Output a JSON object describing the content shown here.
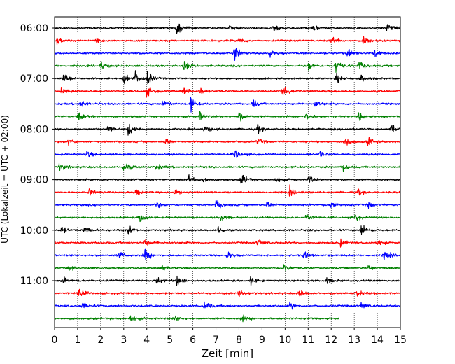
{
  "chart_data": {
    "type": "line",
    "subtype": "helicorder",
    "xlabel": "Zeit  [min]",
    "ylabel": "UTC (Lokalzeit = UTC + 02:00)",
    "xlim": [
      0,
      15
    ],
    "x_ticks": [
      0,
      1,
      2,
      3,
      4,
      5,
      6,
      7,
      8,
      9,
      10,
      11,
      12,
      13,
      14,
      15
    ],
    "x_tick_labels": [
      "0",
      "1",
      "2",
      "3",
      "4",
      "5",
      "6",
      "7",
      "8",
      "9",
      "10",
      "11",
      "12",
      "13",
      "14",
      "15"
    ],
    "grid": "vertical-dotted",
    "minutes_per_line": 15,
    "start_time": "06:00",
    "y_tick_labels": [
      "06:00",
      "07:00",
      "08:00",
      "09:00",
      "10:00",
      "11:00"
    ],
    "line_colors": [
      "#000000",
      "#ff0000",
      "#0000ff",
      "#008000"
    ],
    "series": [
      {
        "start": "06:00",
        "color": "#000000",
        "end_min": 15,
        "events": [
          [
            5.3,
            2.4
          ],
          [
            7.6,
            1.0
          ],
          [
            9.5,
            1.3
          ],
          [
            11.2,
            1.1
          ],
          [
            14.4,
            1.3
          ]
        ]
      },
      {
        "start": "06:15",
        "color": "#ff0000",
        "end_min": 15,
        "events": [
          [
            0.1,
            1.1
          ],
          [
            1.8,
            1.0
          ],
          [
            8.0,
            1.0
          ],
          [
            12.0,
            1.1
          ],
          [
            13.4,
            1.6
          ]
        ]
      },
      {
        "start": "06:30",
        "color": "#0000ff",
        "end_min": 15,
        "events": [
          [
            7.8,
            2.6
          ],
          [
            9.3,
            1.3
          ],
          [
            12.7,
            1.5
          ],
          [
            13.9,
            1.4
          ]
        ]
      },
      {
        "start": "06:45",
        "color": "#008000",
        "end_min": 15,
        "events": [
          [
            2.0,
            1.3
          ],
          [
            5.6,
            1.8
          ],
          [
            11.0,
            1.4
          ],
          [
            12.2,
            2.4
          ],
          [
            13.2,
            1.6
          ]
        ]
      },
      {
        "start": "07:00",
        "color": "#000000",
        "end_min": 15,
        "events": [
          [
            0.4,
            2.5
          ],
          [
            3.0,
            2.2
          ],
          [
            3.5,
            1.9
          ],
          [
            4.0,
            2.2
          ],
          [
            12.2,
            1.5
          ],
          [
            13.3,
            1.2
          ]
        ]
      },
      {
        "start": "07:15",
        "color": "#ff0000",
        "end_min": 15,
        "events": [
          [
            0.3,
            1.0
          ],
          [
            4.0,
            1.5
          ],
          [
            5.6,
            1.4
          ],
          [
            6.3,
            1.3
          ],
          [
            9.9,
            2.6
          ]
        ]
      },
      {
        "start": "07:30",
        "color": "#0000ff",
        "end_min": 15,
        "events": [
          [
            1.1,
            1.3
          ],
          [
            4.7,
            1.4
          ],
          [
            5.9,
            2.3
          ],
          [
            8.6,
            1.3
          ],
          [
            11.3,
            1.2
          ]
        ]
      },
      {
        "start": "07:45",
        "color": "#008000",
        "end_min": 15,
        "events": [
          [
            1.0,
            1.4
          ],
          [
            6.3,
            1.4
          ],
          [
            8.0,
            1.7
          ],
          [
            10.9,
            1.2
          ],
          [
            13.2,
            1.4
          ]
        ]
      },
      {
        "start": "08:00",
        "color": "#000000",
        "end_min": 15,
        "events": [
          [
            2.3,
            1.1
          ],
          [
            3.2,
            2.3
          ],
          [
            6.5,
            1.3
          ],
          [
            8.8,
            1.3
          ],
          [
            14.6,
            2.4
          ]
        ]
      },
      {
        "start": "08:15",
        "color": "#ff0000",
        "end_min": 15,
        "events": [
          [
            0.6,
            1.1
          ],
          [
            4.8,
            1.5
          ],
          [
            8.8,
            1.1
          ],
          [
            12.6,
            1.9
          ],
          [
            13.6,
            1.5
          ]
        ]
      },
      {
        "start": "08:30",
        "color": "#0000ff",
        "end_min": 15,
        "events": [
          [
            1.4,
            1.1
          ],
          [
            7.8,
            1.6
          ],
          [
            11.5,
            1.1
          ]
        ]
      },
      {
        "start": "08:45",
        "color": "#008000",
        "end_min": 15,
        "events": [
          [
            0.2,
            1.3
          ],
          [
            3.0,
            2.0
          ],
          [
            4.4,
            1.2
          ],
          [
            12.5,
            1.4
          ]
        ]
      },
      {
        "start": "09:00",
        "color": "#000000",
        "end_min": 15,
        "events": [
          [
            5.8,
            1.2
          ],
          [
            6.4,
            1.4
          ],
          [
            8.1,
            2.2
          ],
          [
            9.6,
            1.3
          ],
          [
            11.0,
            1.2
          ]
        ]
      },
      {
        "start": "09:15",
        "color": "#ff0000",
        "end_min": 15,
        "events": [
          [
            1.5,
            1.1
          ],
          [
            3.5,
            1.1
          ],
          [
            5.2,
            1.1
          ],
          [
            10.2,
            1.3
          ],
          [
            13.1,
            1.1
          ]
        ]
      },
      {
        "start": "09:30",
        "color": "#0000ff",
        "end_min": 15,
        "events": [
          [
            4.4,
            1.2
          ],
          [
            7.0,
            1.5
          ],
          [
            9.2,
            1.4
          ],
          [
            12.0,
            1.3
          ],
          [
            13.6,
            1.2
          ]
        ]
      },
      {
        "start": "09:45",
        "color": "#008000",
        "end_min": 15,
        "events": [
          [
            3.7,
            1.6
          ],
          [
            7.2,
            1.2
          ],
          [
            10.9,
            1.4
          ],
          [
            13.0,
            1.4
          ]
        ]
      },
      {
        "start": "10:00",
        "color": "#000000",
        "end_min": 15,
        "events": [
          [
            0.3,
            1.2
          ],
          [
            1.3,
            1.5
          ],
          [
            3.2,
            1.3
          ],
          [
            7.1,
            1.2
          ],
          [
            13.3,
            2.2
          ]
        ]
      },
      {
        "start": "10:15",
        "color": "#ff0000",
        "end_min": 15,
        "events": [
          [
            3.9,
            1.1
          ],
          [
            8.8,
            1.3
          ],
          [
            12.4,
            1.2
          ],
          [
            14.0,
            1.1
          ]
        ]
      },
      {
        "start": "10:30",
        "color": "#0000ff",
        "end_min": 15,
        "events": [
          [
            2.8,
            1.2
          ],
          [
            3.9,
            2.0
          ],
          [
            7.5,
            1.2
          ],
          [
            10.8,
            1.3
          ],
          [
            14.3,
            1.9
          ]
        ]
      },
      {
        "start": "10:45",
        "color": "#008000",
        "end_min": 15,
        "events": [
          [
            0.6,
            1.0
          ],
          [
            4.6,
            1.2
          ],
          [
            9.9,
            1.8
          ],
          [
            13.6,
            1.0
          ]
        ]
      },
      {
        "start": "11:00",
        "color": "#000000",
        "end_min": 15,
        "events": [
          [
            0.3,
            1.2
          ],
          [
            4.4,
            1.4
          ],
          [
            5.3,
            2.0
          ],
          [
            8.5,
            1.3
          ],
          [
            11.8,
            1.1
          ]
        ]
      },
      {
        "start": "11:15",
        "color": "#ff0000",
        "end_min": 15,
        "events": [
          [
            1.0,
            1.9
          ],
          [
            8.0,
            2.0
          ],
          [
            10.6,
            1.3
          ],
          [
            13.1,
            1.2
          ]
        ]
      },
      {
        "start": "11:30",
        "color": "#0000ff",
        "end_min": 15,
        "events": [
          [
            1.2,
            1.2
          ],
          [
            6.5,
            1.6
          ],
          [
            10.2,
            1.1
          ],
          [
            13.3,
            1.2
          ]
        ]
      },
      {
        "start": "11:45",
        "color": "#008000",
        "end_min": 12.35,
        "events": [
          [
            3.3,
            1.4
          ],
          [
            5.2,
            1.0
          ],
          [
            8.1,
            1.1
          ]
        ]
      }
    ]
  }
}
